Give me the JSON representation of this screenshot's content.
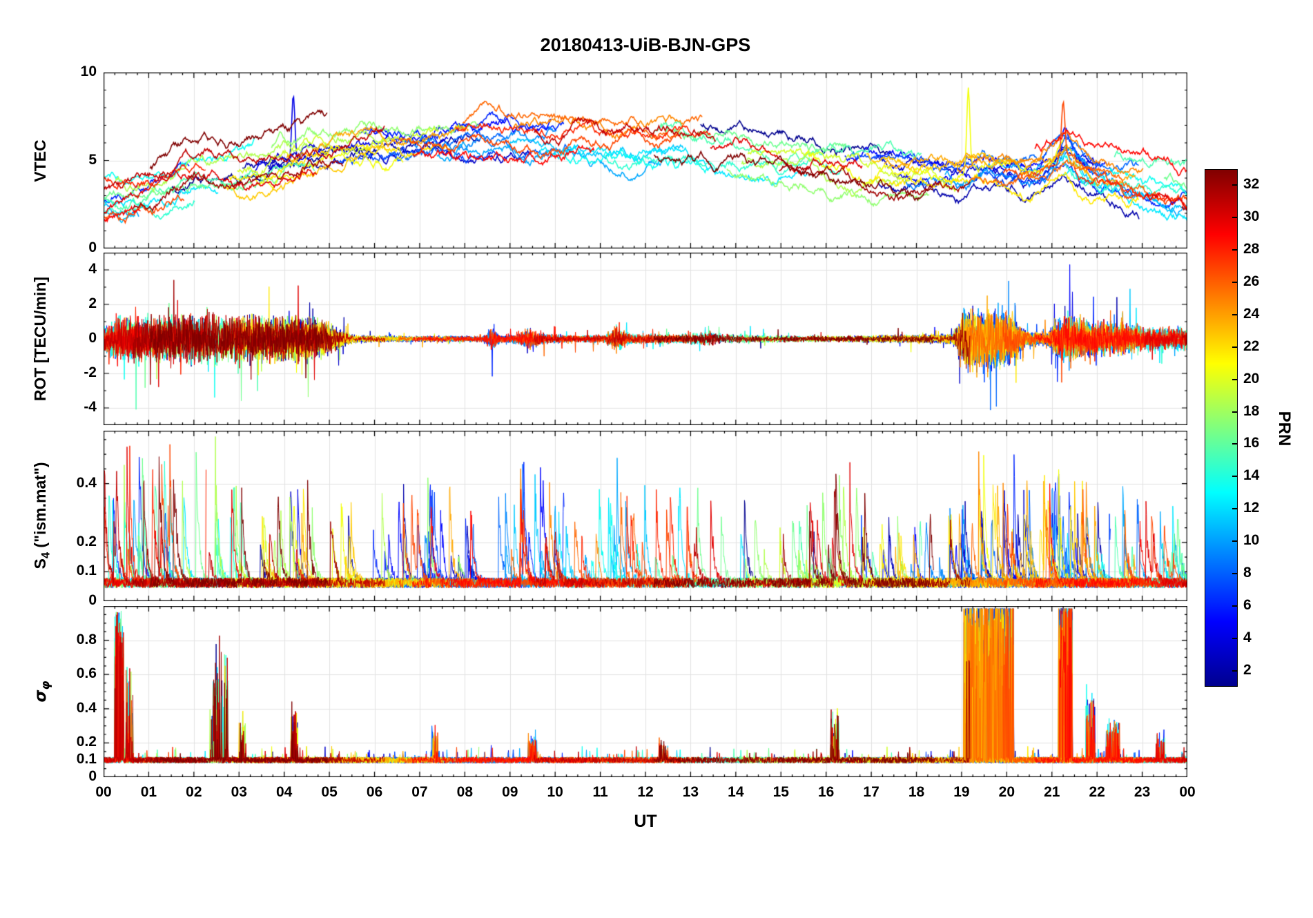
{
  "title": "20180413-UiB-BJN-GPS",
  "xlabel": "UT",
  "seed": 20180413,
  "prn": {
    "min": 1,
    "max": 32
  },
  "x_axis": {
    "hours": [
      0,
      1,
      2,
      3,
      4,
      5,
      6,
      7,
      8,
      9,
      10,
      11,
      12,
      13,
      14,
      15,
      16,
      17,
      18,
      19,
      20,
      21,
      22,
      23,
      24
    ],
    "labels": [
      "00",
      "01",
      "02",
      "03",
      "04",
      "05",
      "06",
      "07",
      "08",
      "09",
      "10",
      "11",
      "12",
      "13",
      "14",
      "15",
      "16",
      "17",
      "18",
      "19",
      "20",
      "21",
      "22",
      "23",
      "00"
    ]
  },
  "colorbar": {
    "label": "PRN",
    "range": [
      1,
      33
    ],
    "tick_values": [
      2,
      4,
      6,
      8,
      10,
      12,
      14,
      16,
      18,
      20,
      22,
      24,
      26,
      28,
      30,
      32
    ],
    "tick_labels": [
      "2",
      "4",
      "6",
      "8",
      "10",
      "12",
      "14",
      "16",
      "18",
      "20",
      "22",
      "24",
      "26",
      "28",
      "30",
      "32"
    ],
    "colormap": "jet",
    "stops": [
      {
        "p": 0.0,
        "color": "#00008f"
      },
      {
        "p": 0.125,
        "color": "#0000ff"
      },
      {
        "p": 0.375,
        "color": "#00ffff"
      },
      {
        "p": 0.5,
        "color": "#7fff7f"
      },
      {
        "p": 0.625,
        "color": "#ffff00"
      },
      {
        "p": 0.875,
        "color": "#ff0000"
      },
      {
        "p": 1.0,
        "color": "#800000"
      }
    ]
  },
  "chart_data": [
    {
      "id": "vtec",
      "type": "line",
      "ylabel": "VTEC",
      "ylim": [
        0,
        10
      ],
      "yticks": [
        {
          "v": 0,
          "label": "0"
        },
        {
          "v": 5,
          "label": "5"
        },
        {
          "v": 10,
          "label": "10"
        }
      ],
      "x_range_hours": [
        0,
        24
      ],
      "series_summary": "VTEC arcs for up to 32 GPS PRNs, diurnal dome shape",
      "envelope_mean_tecu": [
        [
          0,
          2.9
        ],
        [
          0.5,
          3.0
        ],
        [
          1,
          3.1
        ],
        [
          1.5,
          3.6
        ],
        [
          2,
          4.3
        ],
        [
          2.5,
          4.4
        ],
        [
          3,
          4.3
        ],
        [
          3.5,
          4.8
        ],
        [
          4,
          5.2
        ],
        [
          4.5,
          5.5
        ],
        [
          5,
          5.6
        ],
        [
          5.5,
          5.8
        ],
        [
          6,
          6.0
        ],
        [
          7,
          6.1
        ],
        [
          8,
          6.1
        ],
        [
          9,
          6.2
        ],
        [
          10,
          6.3
        ],
        [
          11,
          6.2
        ],
        [
          12,
          6.1
        ],
        [
          13,
          6.0
        ],
        [
          14,
          5.8
        ],
        [
          15,
          5.4
        ],
        [
          16,
          5.1
        ],
        [
          17,
          4.8
        ],
        [
          18,
          4.3
        ],
        [
          19,
          4.1
        ],
        [
          19.5,
          4.6
        ],
        [
          20,
          4.4
        ],
        [
          20.5,
          4.2
        ],
        [
          21,
          4.8
        ],
        [
          21.3,
          5.6
        ],
        [
          21.7,
          4.6
        ],
        [
          22,
          4.2
        ],
        [
          22.5,
          3.9
        ],
        [
          23,
          3.6
        ],
        [
          23.5,
          3.3
        ],
        [
          24,
          3.1
        ]
      ],
      "spread_tecu": 1.3,
      "notable_spikes": [
        {
          "t": 4.2,
          "peak": 9.2,
          "prn": 8
        },
        {
          "t": 19.15,
          "peak": 8.8,
          "prn": 20
        },
        {
          "t": 21.25,
          "peak": 8.2,
          "prn": 27
        }
      ]
    },
    {
      "id": "rot",
      "type": "line",
      "ylabel": "ROT [TECU/min]",
      "ylim": [
        -5,
        5
      ],
      "yticks": [
        {
          "v": -4,
          "label": "-4"
        },
        {
          "v": -2,
          "label": "-2"
        },
        {
          "v": 0,
          "label": "0"
        },
        {
          "v": 2,
          "label": "2"
        },
        {
          "v": 4,
          "label": "4"
        }
      ],
      "series_summary": "Rate of TEC change, noisy around 0; active 00-05 UT, bursts near 08.6, 09.4, 11.3, strong activity 19-20 and 21-23 UT",
      "amplitude_envelope": [
        [
          0,
          1.2
        ],
        [
          0.3,
          2.2
        ],
        [
          1,
          2.2
        ],
        [
          2,
          2.4
        ],
        [
          3,
          2.4
        ],
        [
          4,
          2.2
        ],
        [
          4.8,
          2.0
        ],
        [
          5.3,
          0.8
        ],
        [
          5.6,
          0.35
        ],
        [
          7,
          0.3
        ],
        [
          8.4,
          0.3
        ],
        [
          8.6,
          1.2
        ],
        [
          8.8,
          0.35
        ],
        [
          9.2,
          0.5
        ],
        [
          9.45,
          1.1
        ],
        [
          9.7,
          0.5
        ],
        [
          10.5,
          0.35
        ],
        [
          11.1,
          0.4
        ],
        [
          11.35,
          1.3
        ],
        [
          11.7,
          0.5
        ],
        [
          12.2,
          0.5
        ],
        [
          12.8,
          0.45
        ],
        [
          13.4,
          0.7
        ],
        [
          13.7,
          0.5
        ],
        [
          14.5,
          0.35
        ],
        [
          16,
          0.3
        ],
        [
          17,
          0.35
        ],
        [
          18,
          0.4
        ],
        [
          18.8,
          0.5
        ],
        [
          19.05,
          2.8
        ],
        [
          19.5,
          3.2
        ],
        [
          20.1,
          2.6
        ],
        [
          20.4,
          0.8
        ],
        [
          20.9,
          0.6
        ],
        [
          21.15,
          2.0
        ],
        [
          21.5,
          2.2
        ],
        [
          22,
          1.6
        ],
        [
          22.5,
          1.5
        ],
        [
          23,
          1.3
        ],
        [
          23.5,
          1.2
        ],
        [
          24,
          1.1
        ]
      ]
    },
    {
      "id": "s4",
      "type": "line",
      "ylabel": "S4 (\"ism.mat\")",
      "ylabel_parts": {
        "main": "S",
        "sub": "4",
        "rest": " (\"ism.mat\")"
      },
      "ylim": [
        0,
        0.58
      ],
      "yticks": [
        {
          "v": 0,
          "label": "0"
        },
        {
          "v": 0.1,
          "label": "0.1"
        },
        {
          "v": 0.2,
          "label": "0.2"
        },
        {
          "v": 0.4,
          "label": "0.4"
        }
      ],
      "baseline": 0.07,
      "max_observed": 0.57,
      "series_summary": "Amplitude scintillation index, baseline ~0.05-0.1 with spikes to 0.3-0.57 throughout the day",
      "activity_envelope": [
        [
          0,
          0.8
        ],
        [
          0.5,
          1.0
        ],
        [
          1.7,
          1.0
        ],
        [
          3,
          0.85
        ],
        [
          4,
          0.8
        ],
        [
          5,
          0.7
        ],
        [
          6,
          0.55
        ],
        [
          7,
          0.8
        ],
        [
          7.3,
          1.0
        ],
        [
          8,
          0.6
        ],
        [
          9,
          0.8
        ],
        [
          9.5,
          0.95
        ],
        [
          10.3,
          0.75
        ],
        [
          11,
          0.8
        ],
        [
          11.5,
          0.85
        ],
        [
          12,
          0.7
        ],
        [
          13,
          0.8
        ],
        [
          13.5,
          0.9
        ],
        [
          14.5,
          0.55
        ],
        [
          15.5,
          0.6
        ],
        [
          16,
          0.8
        ],
        [
          16.5,
          0.85
        ],
        [
          17.5,
          0.6
        ],
        [
          18.5,
          0.55
        ],
        [
          19,
          0.8
        ],
        [
          19.5,
          0.95
        ],
        [
          20.5,
          0.8
        ],
        [
          21,
          0.85
        ],
        [
          21.5,
          0.95
        ],
        [
          22,
          0.75
        ],
        [
          23,
          0.65
        ],
        [
          24,
          0.6
        ]
      ]
    },
    {
      "id": "sigma",
      "type": "line",
      "ylabel": "σφ",
      "ylabel_parts": {
        "main": "σ",
        "sub": "φ"
      },
      "ylim": [
        0,
        1.0
      ],
      "yticks": [
        {
          "v": 0,
          "label": "0"
        },
        {
          "v": 0.1,
          "label": "0.1"
        },
        {
          "v": 0.2,
          "label": "0.2"
        },
        {
          "v": 0.4,
          "label": "0.4"
        },
        {
          "v": 0.6,
          "label": "0.6"
        },
        {
          "v": 0.8,
          "label": "0.8"
        }
      ],
      "baseline": 0.1,
      "series_summary": "Phase scintillation index, baseline ~0.1; spikes near 00.3 (0.9), 02.5 (0.75), strong saturated events 19-20 UT and 21.2-21.4 UT reaching 1.0",
      "spike_regions": [
        [
          0.25,
          0.45,
          0.9
        ],
        [
          0.5,
          0.65,
          0.72
        ],
        [
          2.35,
          2.75,
          0.75
        ],
        [
          3.0,
          3.15,
          0.3
        ],
        [
          4.15,
          4.3,
          0.35
        ],
        [
          7.25,
          7.4,
          0.22
        ],
        [
          9.4,
          9.6,
          0.18
        ],
        [
          12.3,
          12.5,
          0.15
        ],
        [
          16.1,
          16.3,
          0.35
        ],
        [
          19.05,
          20.15,
          1.0
        ],
        [
          21.15,
          21.45,
          1.0
        ],
        [
          21.75,
          21.95,
          0.5
        ],
        [
          22.2,
          22.5,
          0.28
        ],
        [
          23.3,
          23.5,
          0.2
        ]
      ]
    }
  ]
}
